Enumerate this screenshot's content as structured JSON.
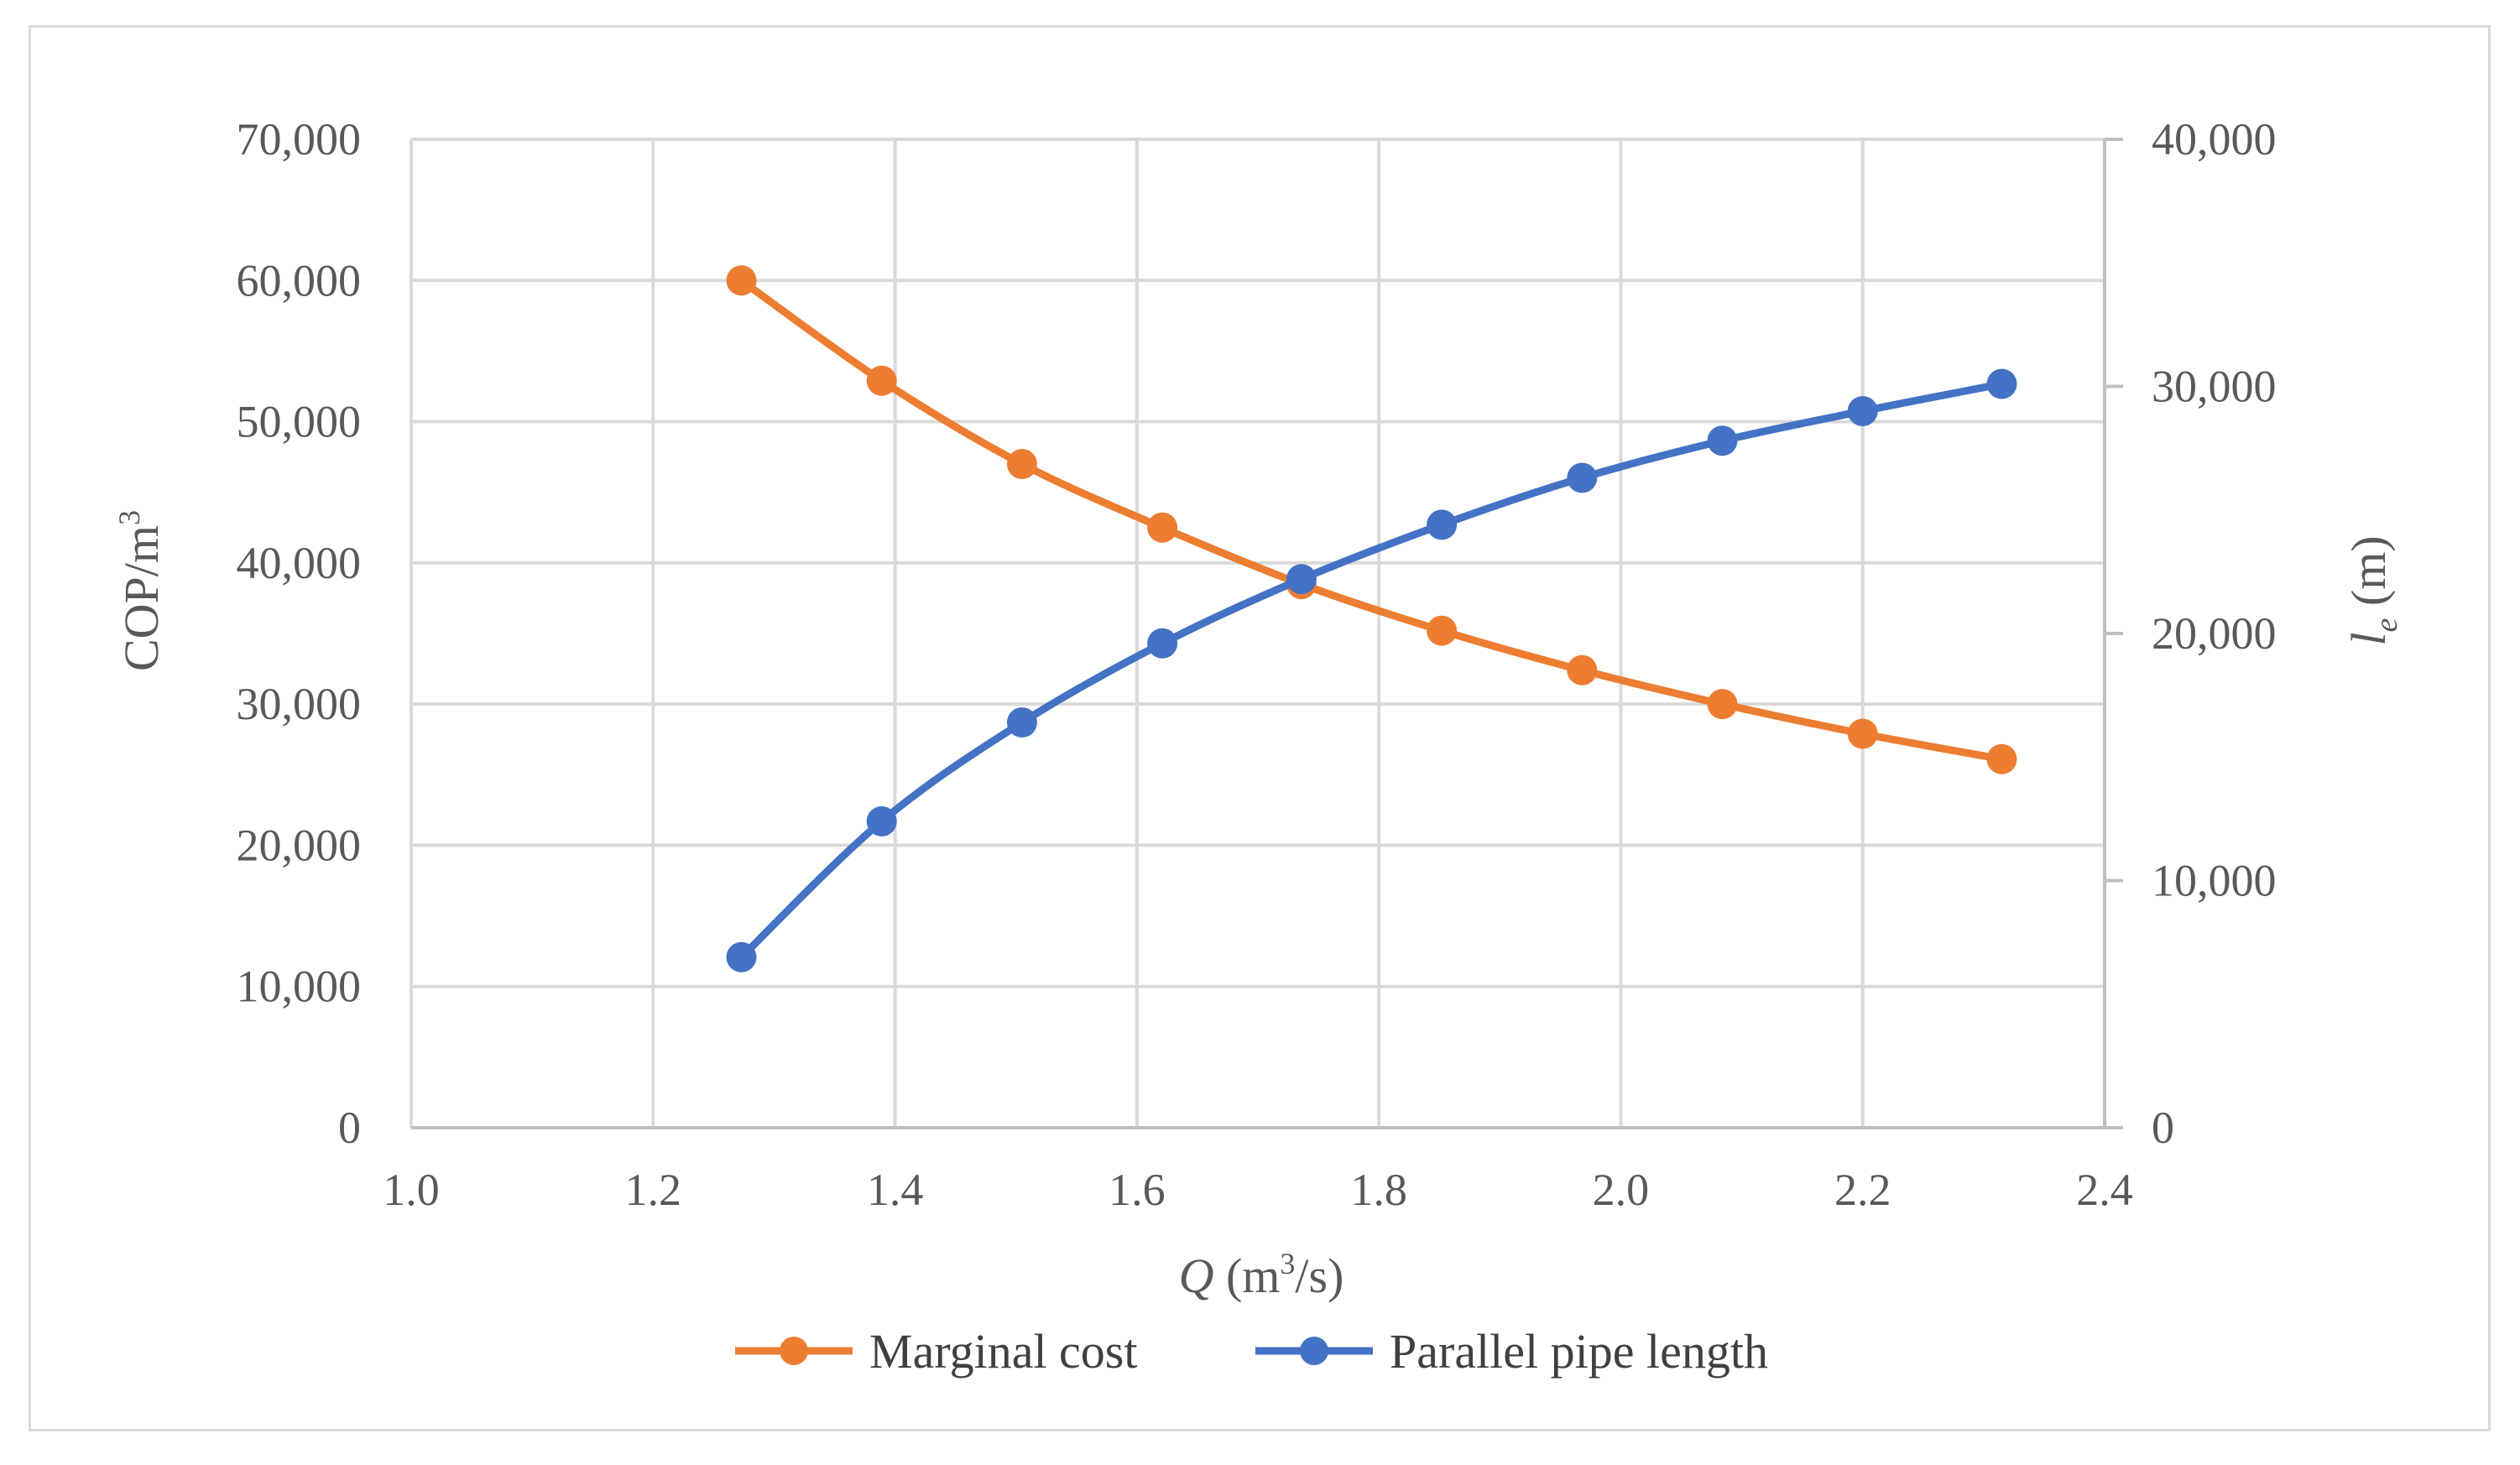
{
  "chart_data": {
    "type": "line",
    "title": "",
    "x": [
      1.273,
      1.389,
      1.505,
      1.621,
      1.736,
      1.852,
      1.968,
      2.084,
      2.2,
      2.315
    ],
    "xlim": [
      1.0,
      2.4
    ],
    "x_ticks": [
      "1.0",
      "1.2",
      "1.4",
      "1.6",
      "1.8",
      "2.0",
      "2.2",
      "2.4"
    ],
    "xlabel": {
      "italic": "Q",
      "text": " (m",
      "sup": "3",
      "tail": "/s)"
    },
    "ylim_left": [
      0,
      70000
    ],
    "y_ticks_left": [
      "0",
      "10,000",
      "20,000",
      "30,000",
      "40,000",
      "50,000",
      "60,000",
      "70,000"
    ],
    "ylabel_left": {
      "text": "COP/m",
      "sup": "3"
    },
    "ylim_right": [
      0,
      40000
    ],
    "y_ticks_right": [
      "0",
      "10,000",
      "20,000",
      "30,000",
      "40,000"
    ],
    "ylabel_right": {
      "italic": "l",
      "sub": "e",
      "tail": " (m)"
    },
    "grid": true,
    "legend_position": "bottom",
    "series": [
      {
        "name": "Marginal cost",
        "axis": "left",
        "color": "#ED7D31",
        "values": [
          60000,
          52900,
          47000,
          42500,
          38500,
          35200,
          32400,
          30000,
          27900,
          26100
        ]
      },
      {
        "name": "Parallel pipe length",
        "axis": "right",
        "color": "#4472C4",
        "values": [
          6900,
          12400,
          16400,
          19600,
          22200,
          24400,
          26300,
          27800,
          29000,
          30100
        ]
      }
    ]
  }
}
